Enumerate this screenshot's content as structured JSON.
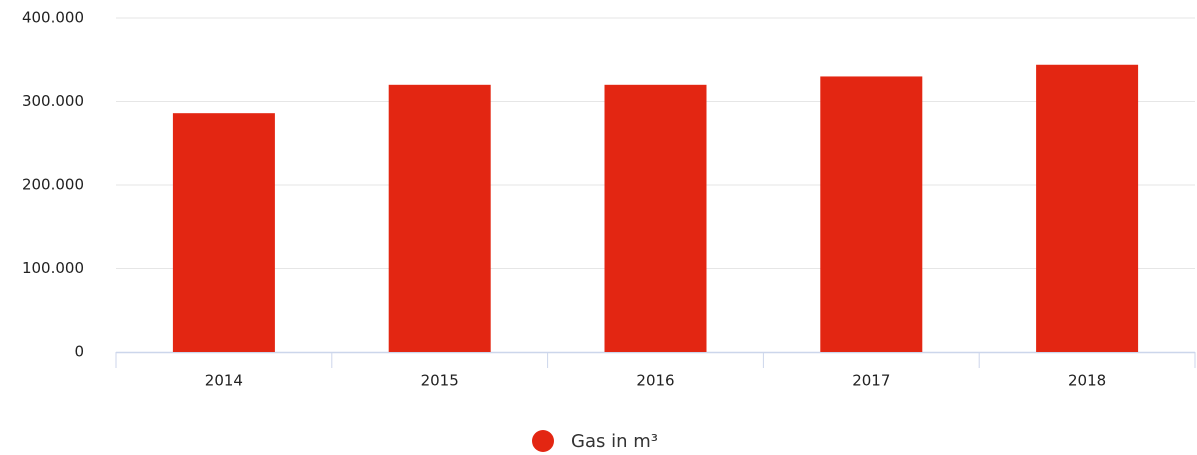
{
  "chart_data": {
    "type": "bar",
    "categories": [
      "2014",
      "2015",
      "2016",
      "2017",
      "2018"
    ],
    "series": [
      {
        "name": "Gas in m³",
        "color": "#e32612",
        "values": [
          286000,
          320000,
          320000,
          330000,
          344000
        ]
      }
    ],
    "ylim": [
      0,
      400000
    ],
    "yticks": [
      0,
      {
        "value": 100000,
        "label": "100.000"
      },
      {
        "value": 200000,
        "label": "200.000"
      },
      {
        "value": 300000,
        "label": "300.000"
      },
      {
        "value": 400000,
        "label": "400.000"
      }
    ],
    "grid": true,
    "legend": "bottom"
  }
}
